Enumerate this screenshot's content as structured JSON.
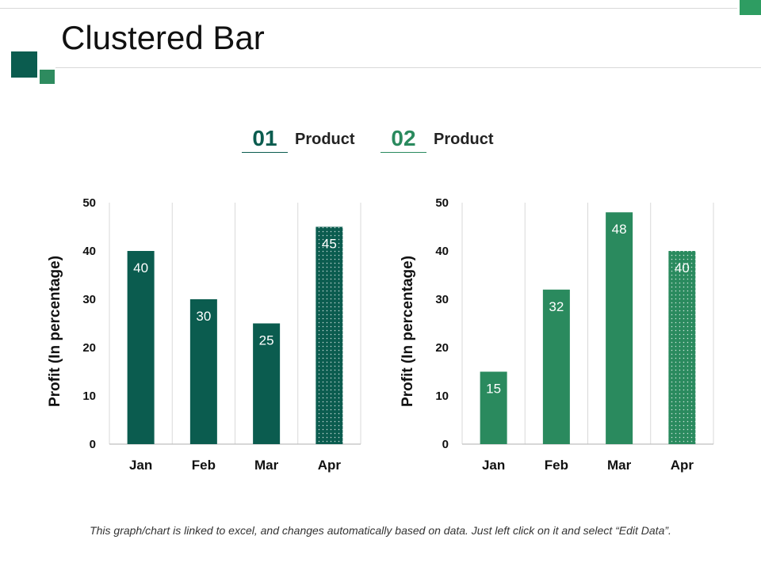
{
  "page": {
    "title": "Clustered Bar",
    "footnote": "This graph/chart is linked to excel, and changes automatically based on data. Just left click on it and select “Edit Data”."
  },
  "legend": [
    {
      "number": "01",
      "label": "Product",
      "color": "#0b5c4f"
    },
    {
      "number": "02",
      "label": "Product",
      "color": "#2a8a5e"
    }
  ],
  "colors": {
    "dark_green": "#0b5c4f",
    "medium_green": "#2a8a5e",
    "accent_green": "#2e9d62"
  },
  "chart_data": [
    {
      "type": "bar",
      "categories": [
        "Jan",
        "Feb",
        "Mar",
        "Apr"
      ],
      "series": [
        {
          "values": [
            40,
            30,
            25,
            45
          ]
        }
      ],
      "ylabel": "Profit  (In percentage)",
      "ylim": [
        0,
        50
      ],
      "yticks": [
        0,
        10,
        20,
        30,
        40,
        50
      ],
      "bar_color": "#0b5c4f",
      "dotted_category": "Apr",
      "grid": "vertical separators",
      "data_labels": true
    },
    {
      "type": "bar",
      "categories": [
        "Jan",
        "Feb",
        "Mar",
        "Apr"
      ],
      "series": [
        {
          "values": [
            15,
            32,
            48,
            40
          ]
        }
      ],
      "ylabel": "Profit  (In percentage)",
      "ylim": [
        0,
        50
      ],
      "yticks": [
        0,
        10,
        20,
        30,
        40,
        50
      ],
      "bar_color": "#2a8a5e",
      "dotted_category": "Apr",
      "grid": "vertical separators",
      "data_labels": true
    }
  ]
}
